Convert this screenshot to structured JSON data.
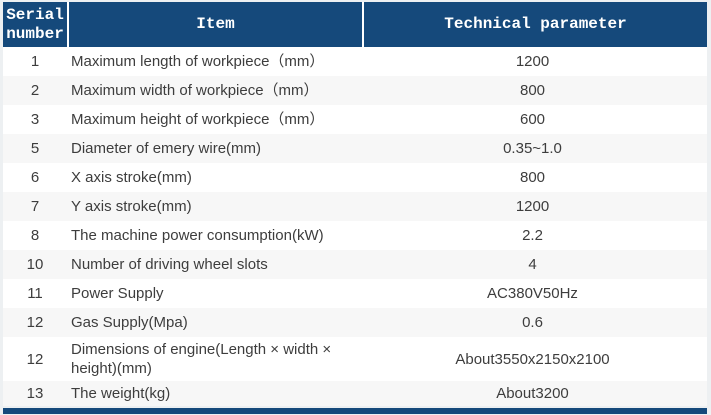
{
  "table": {
    "columns": [
      {
        "label": "Serial number"
      },
      {
        "label": "Item"
      },
      {
        "label": "Technical parameter"
      }
    ],
    "rows": [
      {
        "serial": "1",
        "item": "Maximum length of workpiece（mm）",
        "value": "1200"
      },
      {
        "serial": "2",
        "item": "Maximum width of workpiece（mm）",
        "value": "800"
      },
      {
        "serial": "3",
        "item": "Maximum height of workpiece（mm）",
        "value": "600"
      },
      {
        "serial": "5",
        "item": "Diameter of emery wire(mm)",
        "value": "0.35~1.0"
      },
      {
        "serial": "6",
        "item": "X axis stroke(mm)",
        "value": "800"
      },
      {
        "serial": "7",
        "item": "Y axis stroke(mm)",
        "value": "1200"
      },
      {
        "serial": "8",
        "item": "The machine power consumption(kW)",
        "value": "2.2"
      },
      {
        "serial": "10",
        "item": "Number of driving wheel slots",
        "value": "4"
      },
      {
        "serial": "11",
        "item": "Power Supply",
        "value": "AC380V50Hz"
      },
      {
        "serial": "12",
        "item": "Gas Supply(Mpa)",
        "value": "0.6"
      },
      {
        "serial": "12",
        "item": "Dimensions of engine(Length × width × height)(mm)",
        "value": "About3550x2150x2100"
      },
      {
        "serial": "13",
        "item": "The weight(kg)",
        "value": "About3200"
      }
    ],
    "colors": {
      "header_bg": "#15497b",
      "header_text": "#ffffff",
      "row_bg": "#ffffff",
      "row_alt_bg": "#f7f7f7",
      "body_text": "#3d3d3d",
      "bottom_bar": "#15497b",
      "page_bg": "#edf0f2"
    }
  }
}
